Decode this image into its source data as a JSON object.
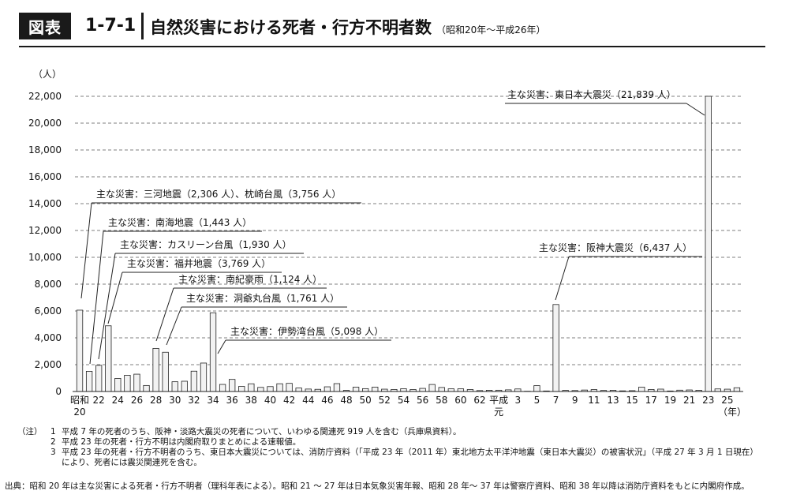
{
  "header": {
    "badge": "図表",
    "figure_number": "1-7-1",
    "title": "自然災害における死者・行方不明者数",
    "subtitle": "（昭和20年～平成26年）"
  },
  "chart_data": {
    "type": "bar",
    "ylabel": "（人）",
    "xlabel": "（年）",
    "ylim": [
      0,
      22000
    ],
    "yticks": [
      0,
      2000,
      4000,
      6000,
      8000,
      10000,
      12000,
      14000,
      16000,
      18000,
      20000,
      22000
    ],
    "ytick_labels": [
      "0",
      "2,000",
      "4,000",
      "6,000",
      "8,000",
      "10,000",
      "12,000",
      "14,000",
      "16,000",
      "18,000",
      "20,000",
      "22,000"
    ],
    "grid": "horizontal-dashed",
    "bar_color": "#f2f2f2",
    "categories": [
      "S20",
      "S21",
      "S22",
      "S23",
      "S24",
      "S25",
      "S26",
      "S27",
      "S28",
      "S29",
      "S30",
      "S31",
      "S32",
      "S33",
      "S34",
      "S35",
      "S36",
      "S37",
      "S38",
      "S39",
      "S40",
      "S41",
      "S42",
      "S43",
      "S44",
      "S45",
      "S46",
      "S47",
      "S48",
      "S49",
      "S50",
      "S51",
      "S52",
      "S53",
      "S54",
      "S55",
      "S56",
      "S57",
      "S58",
      "S59",
      "S60",
      "S61",
      "S62",
      "S63",
      "H1",
      "H2",
      "H3",
      "H4",
      "H5",
      "H6",
      "H7",
      "H8",
      "H9",
      "H10",
      "H11",
      "H12",
      "H13",
      "H14",
      "H15",
      "H16",
      "H17",
      "H18",
      "H19",
      "H20",
      "H21",
      "H22",
      "H23",
      "H24",
      "H25",
      "H26"
    ],
    "values": [
      6062,
      1504,
      1950,
      4897,
      975,
      1210,
      1291,
      449,
      3212,
      2926,
      727,
      765,
      1515,
      2120,
      5868,
      528,
      902,
      381,
      575,
      307,
      367,
      578,
      607,
      259,
      183,
      163,
      350,
      587,
      85,
      324,
      213,
      326,
      174,
      153,
      208,
      148,
      232,
      524,
      301,
      199,
      199,
      148,
      69,
      93,
      96,
      123,
      190,
      19,
      438,
      39,
      6482,
      84,
      71,
      109,
      141,
      78,
      90,
      48,
      62,
      327,
      153,
      177,
      39,
      100,
      115,
      89,
      22000,
      192,
      173,
      280
    ],
    "xtick_labels": [
      {
        "index": 0,
        "label": "昭和",
        "label2": "20"
      },
      {
        "index": 2,
        "label": "22"
      },
      {
        "index": 4,
        "label": "24"
      },
      {
        "index": 6,
        "label": "26"
      },
      {
        "index": 8,
        "label": "28"
      },
      {
        "index": 10,
        "label": "30"
      },
      {
        "index": 12,
        "label": "32"
      },
      {
        "index": 14,
        "label": "34"
      },
      {
        "index": 16,
        "label": "36"
      },
      {
        "index": 18,
        "label": "38"
      },
      {
        "index": 20,
        "label": "40"
      },
      {
        "index": 22,
        "label": "42"
      },
      {
        "index": 24,
        "label": "44"
      },
      {
        "index": 26,
        "label": "46"
      },
      {
        "index": 28,
        "label": "48"
      },
      {
        "index": 30,
        "label": "50"
      },
      {
        "index": 32,
        "label": "52"
      },
      {
        "index": 34,
        "label": "54"
      },
      {
        "index": 36,
        "label": "56"
      },
      {
        "index": 38,
        "label": "58"
      },
      {
        "index": 40,
        "label": "60"
      },
      {
        "index": 42,
        "label": "62"
      },
      {
        "index": 44,
        "label": "平成",
        "label2": "元"
      },
      {
        "index": 46,
        "label": "3"
      },
      {
        "index": 48,
        "label": "5"
      },
      {
        "index": 50,
        "label": "7"
      },
      {
        "index": 52,
        "label": "9"
      },
      {
        "index": 54,
        "label": "11"
      },
      {
        "index": 56,
        "label": "13"
      },
      {
        "index": 58,
        "label": "15"
      },
      {
        "index": 60,
        "label": "17"
      },
      {
        "index": 62,
        "label": "19"
      },
      {
        "index": 64,
        "label": "21"
      },
      {
        "index": 66,
        "label": "23"
      },
      {
        "index": 68,
        "label": "25"
      }
    ],
    "annotations": [
      {
        "bar": 0,
        "text": "主な災害：三河地震（2,306 人）、枕崎台風（3,756 人）"
      },
      {
        "bar": 2,
        "text": "主な災害：南海地震（1,443 人）"
      },
      {
        "bar": 3,
        "text": "主な災害：カスリーン台風（1,930 人）"
      },
      {
        "bar": 3,
        "text": "主な災害：福井地震（3,769 人）"
      },
      {
        "bar": 8,
        "text": "主な災害：南紀豪雨（1,124 人）"
      },
      {
        "bar": 9,
        "text": "主な災害：洞爺丸台風（1,761 人）"
      },
      {
        "bar": 14,
        "text": "主な災害：伊勢湾台風（5,098 人）"
      },
      {
        "bar": 50,
        "text": "主な災害：阪神大震災（6,437 人）"
      },
      {
        "bar": 66,
        "text": "主な災害：東日本大震災（21,839 人）"
      }
    ]
  },
  "notes": {
    "label": "（注）",
    "items": [
      {
        "num": "1",
        "text": "平成 7 年の死者のうち、阪神・淡路大震災の死者について、いわゆる関連死 919 人を含む（兵庫県資料）。"
      },
      {
        "num": "2",
        "text": "平成 23 年の死者・行方不明は内閣府取りまとめによる速報値。"
      },
      {
        "num": "3",
        "text": "平成 23 年の死者・行方不明者のうち、東日本大震災については、消防庁資料（「平成 23 年（2011 年）東北地方太平洋沖地震（東日本大震災）の被害状況」（平成 27 年 3 月 1 日現在）"
      },
      {
        "num": "",
        "text": "により、死者には震災関連死を含む。"
      }
    ],
    "source": "出典：昭和 20 年は主な災害による死者・行方不明者（理科年表による）。昭和 21 ～ 27 年は日本気象災害年報、昭和 28 年～ 37 年は警察庁資料、昭和 38 年以降は消防庁資料をもとに内閣府作成。"
  }
}
